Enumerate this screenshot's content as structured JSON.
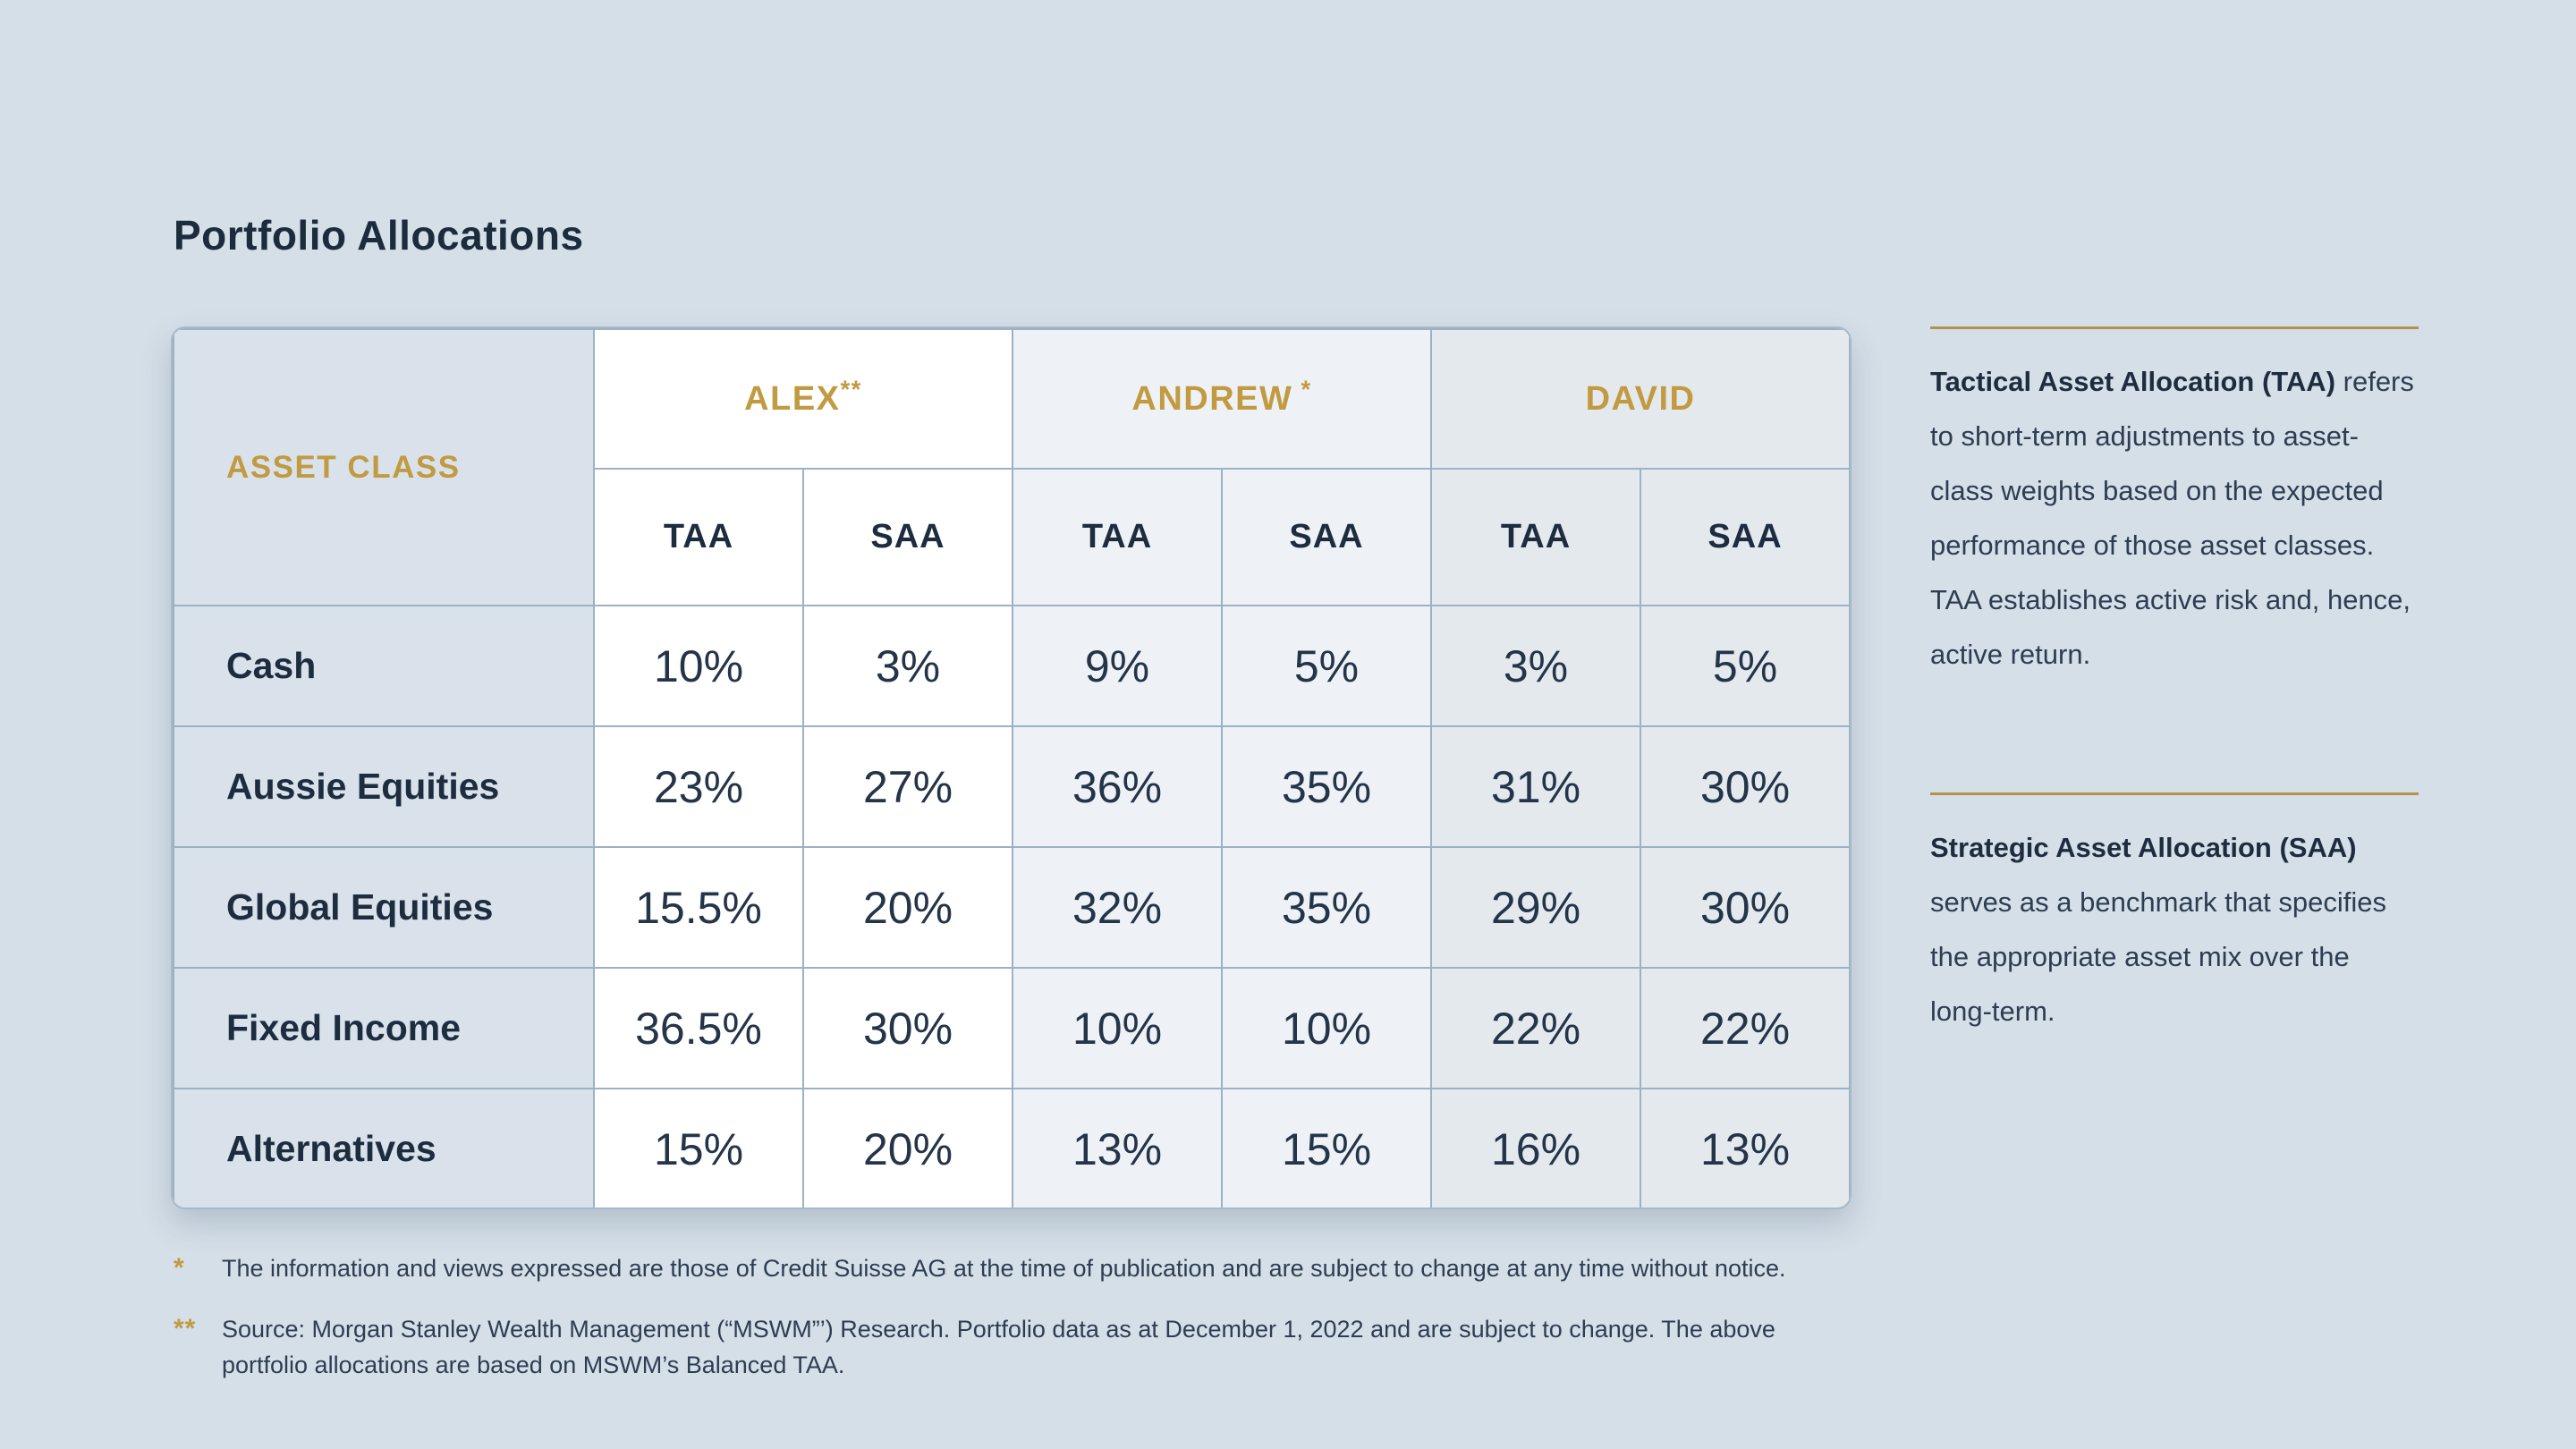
{
  "page": {
    "title": "Portfolio Allocations",
    "background_color": "#d5dfe8"
  },
  "colors": {
    "accent_gold": "#c19a41",
    "navy_text": "#1d2c3f",
    "value_text": "#243449",
    "label_column_bg": "#d9e2eb",
    "alex_group_bg": "#ffffff",
    "andrew_group_bg": "#eef2f6",
    "david_group_bg": "#e4e9ee",
    "grid_border": "#9db1c4"
  },
  "table": {
    "corner_header": "ASSET CLASS",
    "groups": [
      {
        "name": "ALEX",
        "marker": "**"
      },
      {
        "name": "ANDREW",
        "marker": " *"
      },
      {
        "name": "DAVID",
        "marker": ""
      }
    ],
    "sub_headers": [
      "TAA",
      "SAA",
      "TAA",
      "SAA",
      "TAA",
      "SAA"
    ],
    "rows": [
      {
        "label": "Cash",
        "values": [
          "10%",
          "3%",
          "9%",
          "5%",
          "3%",
          "5%"
        ]
      },
      {
        "label": "Aussie Equities",
        "values": [
          "23%",
          "27%",
          "36%",
          "35%",
          "31%",
          "30%"
        ]
      },
      {
        "label": "Global Equities",
        "values": [
          "15.5%",
          "20%",
          "32%",
          "35%",
          "29%",
          "30%"
        ]
      },
      {
        "label": "Fixed Income",
        "values": [
          "36.5%",
          "30%",
          "10%",
          "10%",
          "22%",
          "22%"
        ]
      },
      {
        "label": "Alternatives",
        "values": [
          "15%",
          "20%",
          "13%",
          "15%",
          "16%",
          "13%"
        ]
      }
    ]
  },
  "sidebar": {
    "taa": {
      "heading": "Tactical Asset Allocation (TAA)",
      "body": "refers to short-term adjustments to asset-class weights based on the expected performance of those asset classes. TAA establishes active risk and, hence, active return."
    },
    "saa": {
      "heading": "Strategic Asset Allocation (SAA)",
      "body": "serves as a benchmark that specifies the appropriate asset mix over the long-term."
    }
  },
  "footnotes": [
    {
      "marker": "*",
      "text": "The information and views expressed are those of Credit Suisse AG at the time of publication and are subject to change at any time without notice."
    },
    {
      "marker": "**",
      "text": "Source: Morgan Stanley Wealth Management (“MSWM”’) Research. Portfolio data as at December 1, 2022 and are subject to change. The above portfolio allocations are based on MSWM’s Balanced TAA."
    }
  ]
}
